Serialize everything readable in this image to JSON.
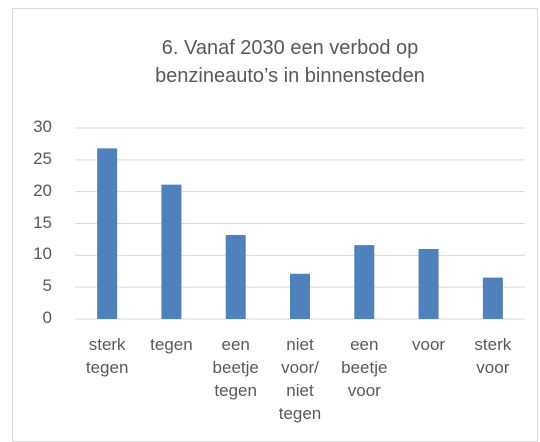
{
  "chart_data": {
    "type": "bar",
    "title": "6. Vanaf 2030 een verbod op benzineauto’s in binnensteden",
    "categories": [
      "sterk tegen",
      "tegen",
      "een beetje tegen",
      "niet voor/ niet tegen",
      "een beetje voor",
      "voor",
      "sterk voor"
    ],
    "values": [
      26.8,
      21.1,
      13.2,
      7.1,
      11.6,
      11.0,
      6.5
    ],
    "color": "#4f81bd",
    "ylim": [
      0,
      30
    ],
    "yticks": [
      0,
      5,
      10,
      15,
      20,
      25,
      30
    ],
    "grid": true
  }
}
